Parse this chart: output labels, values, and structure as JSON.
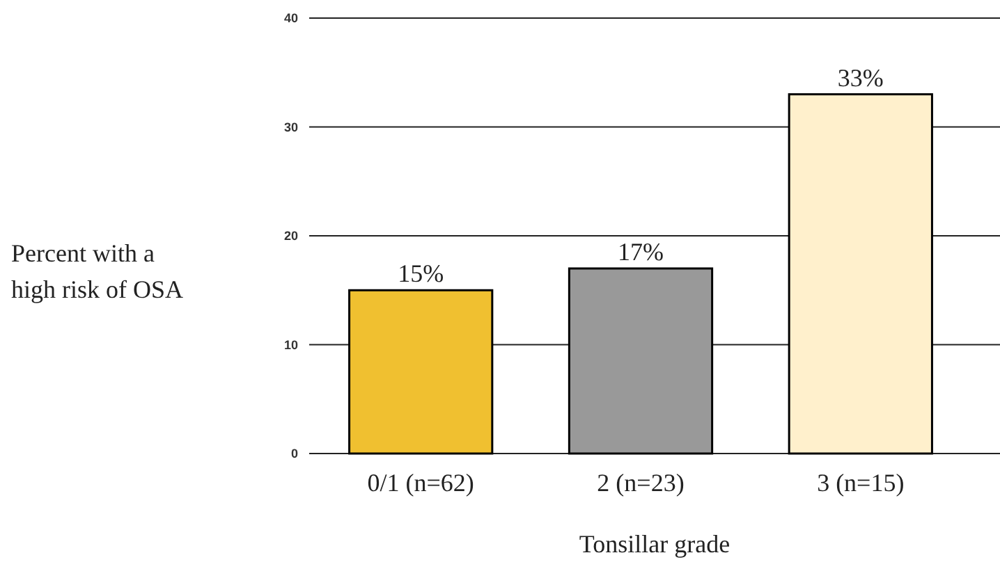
{
  "chart_data": {
    "type": "bar",
    "xlabel": "Tonsillar grade",
    "ylabel": "Percent with a high risk of OSA",
    "categories": [
      "0/1 (n=62)",
      "2 (n=23)",
      "3 (n=15)"
    ],
    "values": [
      15,
      17,
      33
    ],
    "colors": [
      "#f0c030",
      "#999999",
      "#fff0cc"
    ],
    "value_labels": [
      "15%",
      "17%",
      "33%"
    ],
    "ylim": [
      0,
      40
    ],
    "yticks": [
      0,
      10,
      20,
      30,
      40
    ],
    "grid": "y"
  }
}
